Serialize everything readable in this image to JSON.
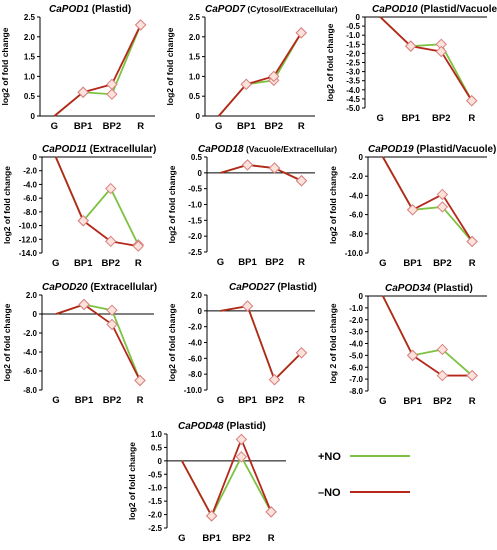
{
  "legend": [
    {
      "name": "+NO",
      "color": "#7dc242"
    },
    {
      "name": "–NO",
      "color": "#b5271b"
    }
  ],
  "style": {
    "plus_no_color": "#7dc242",
    "minus_no_color": "#b5271b",
    "marker_stroke": "#d98080",
    "marker_fill": "#fbe3dc"
  },
  "chart_data": [
    {
      "type": "line",
      "title_gene": "CaPOD1",
      "title_loc": " (Plastid)",
      "ylabel": "log2 of fold change",
      "categories": [
        "G",
        "BP1",
        "BP2",
        "R"
      ],
      "ylim": [
        0,
        2.5
      ],
      "yticks": [
        "0",
        "0.5",
        "1.0",
        "1.5",
        "2.0",
        "2.5"
      ],
      "tickvals": [
        0,
        0.5,
        1.0,
        1.5,
        2.0,
        2.5
      ],
      "series": [
        {
          "name": "+NO",
          "values": [
            0,
            0.6,
            0.55,
            2.3
          ]
        },
        {
          "name": "–NO",
          "values": [
            0,
            0.6,
            0.8,
            2.3
          ]
        }
      ]
    },
    {
      "type": "line",
      "title_gene": "CaPOD7",
      "title_loc": " (Cytosol/Extracellular)",
      "ylabel": "log2 of fold change",
      "categories": [
        "G",
        "BP1",
        "BP2",
        "R"
      ],
      "ylim": [
        0,
        2.5
      ],
      "yticks": [
        "0",
        "0.5",
        "1.0",
        "1.5",
        "2.0",
        "2.5"
      ],
      "tickvals": [
        0,
        0.5,
        1.0,
        1.5,
        2.0,
        2.5
      ],
      "series": [
        {
          "name": "+NO",
          "values": [
            0,
            0.8,
            0.9,
            2.1
          ]
        },
        {
          "name": "–NO",
          "values": [
            0,
            0.8,
            1.0,
            2.1
          ]
        }
      ]
    },
    {
      "type": "line",
      "title_gene": "CaPOD10",
      "title_loc": " (Plastid/Vacuole)",
      "ylabel": "log2 of fold change",
      "categories": [
        "G",
        "BP1",
        "BP2",
        "R"
      ],
      "ylim": [
        -5.0,
        0
      ],
      "yticks": [
        "0",
        "-0.5",
        "-1.0",
        "-1.5",
        "-2.0",
        "-2.5",
        "-3.0",
        "-3.5",
        "-4.0",
        "-4.5",
        "-5.0"
      ],
      "tickvals": [
        0,
        -0.5,
        -1.0,
        -1.5,
        -2.0,
        -2.5,
        -3.0,
        -3.5,
        -4.0,
        -4.5,
        -5.0
      ],
      "series": [
        {
          "name": "+NO",
          "values": [
            0,
            -1.6,
            -1.5,
            -4.6
          ]
        },
        {
          "name": "–NO",
          "values": [
            0,
            -1.6,
            -1.9,
            -4.6
          ]
        }
      ]
    },
    {
      "type": "line",
      "title_gene": "CaPOD11",
      "title_loc": " (Extracellular)",
      "ylabel": "log2 of fold change",
      "categories": [
        "G",
        "BP1",
        "BP2",
        "R"
      ],
      "ylim": [
        -14.0,
        0
      ],
      "yticks": [
        "0",
        "-2.0",
        "-4.0",
        "-6.0",
        "-8.0",
        "-10.0",
        "-12.0",
        "-14.0"
      ],
      "tickvals": [
        0,
        -2,
        -4,
        -6,
        -8,
        -10,
        -12,
        -14
      ],
      "series": [
        {
          "name": "+NO",
          "values": [
            0,
            -9.3,
            -4.6,
            -12.8
          ]
        },
        {
          "name": "–NO",
          "values": [
            0,
            -9.3,
            -12.3,
            -13.0
          ]
        }
      ]
    },
    {
      "type": "line",
      "title_gene": "CaPOD18",
      "title_loc": " (Vacuole/Extracellular)",
      "ylabel": "log2 of fold change",
      "categories": [
        "G",
        "BP1",
        "BP2",
        "R"
      ],
      "ylim": [
        -2.5,
        0.5
      ],
      "yticks": [
        "0.5",
        "0",
        "-0.5",
        "-1.0",
        "-1.5",
        "-2.0",
        "-2.5"
      ],
      "tickvals": [
        0.5,
        0,
        -0.5,
        -1.0,
        -1.5,
        -2.0,
        -2.5
      ],
      "series": [
        {
          "name": "+NO",
          "values": [
            0,
            0.25,
            0.15,
            -0.25
          ]
        },
        {
          "name": "–NO",
          "values": [
            0,
            0.25,
            0.15,
            -0.25
          ]
        }
      ]
    },
    {
      "type": "line",
      "title_gene": "CaPOD19",
      "title_loc": " (Plastid/Vacuole)",
      "ylabel": "log2 of fold change",
      "categories": [
        "G",
        "BP1",
        "BP2",
        "R"
      ],
      "ylim": [
        -10.0,
        0
      ],
      "yticks": [
        "0",
        "-2.0",
        "-4.0",
        "-6.0",
        "-8.0",
        "-10.0"
      ],
      "tickvals": [
        0,
        -2,
        -4,
        -6,
        -8,
        -10
      ],
      "series": [
        {
          "name": "+NO",
          "values": [
            0,
            -5.5,
            -5.2,
            -8.8
          ]
        },
        {
          "name": "–NO",
          "values": [
            0,
            -5.5,
            -3.9,
            -8.8
          ]
        }
      ]
    },
    {
      "type": "line",
      "title_gene": "CaPOD20",
      "title_loc": " (Extracellular)",
      "ylabel": "log2 of fold change",
      "categories": [
        "G",
        "BP1",
        "BP2",
        "R"
      ],
      "ylim": [
        -8.0,
        2.0
      ],
      "yticks": [
        "2.0",
        "0",
        "-2.0",
        "-4.0",
        "-6.0",
        "-8.0"
      ],
      "tickvals": [
        2,
        0,
        -2,
        -4,
        -6,
        -8
      ],
      "series": [
        {
          "name": "+NO",
          "values": [
            0,
            1.0,
            0.4,
            -7.0
          ]
        },
        {
          "name": "–NO",
          "values": [
            0,
            1.0,
            -1.1,
            -7.0
          ]
        }
      ]
    },
    {
      "type": "line",
      "title_gene": "CaPOD27",
      "title_loc": " (Plastid)",
      "ylabel": "log2 of fold change",
      "categories": [
        "G",
        "BP1",
        "BP2",
        "R"
      ],
      "ylim": [
        -10.0,
        2.0
      ],
      "yticks": [
        "2.0",
        "0",
        "-2.0",
        "-4.0",
        "-6.0",
        "-8.0",
        "-10.0"
      ],
      "tickvals": [
        2,
        0,
        -2,
        -4,
        -6,
        -8,
        -10
      ],
      "series": [
        {
          "name": "+NO",
          "values": [
            0,
            0.6,
            -8.7,
            -5.3
          ]
        },
        {
          "name": "–NO",
          "values": [
            0,
            0.6,
            -8.7,
            -5.3
          ]
        }
      ]
    },
    {
      "type": "line",
      "title_gene": "CaPOD34",
      "title_loc": " (Plastid)",
      "ylabel": "log 2 of fold change",
      "categories": [
        "G",
        "BP1",
        "BP2",
        "R"
      ],
      "ylim": [
        -8.0,
        0
      ],
      "yticks": [
        "0",
        "-1.0",
        "-2.0",
        "-3.0",
        "-4.0",
        "-5.0",
        "-6.0",
        "-7.0",
        "-8.0"
      ],
      "tickvals": [
        0,
        -1,
        -2,
        -3,
        -4,
        -5,
        -6,
        -7,
        -8
      ],
      "series": [
        {
          "name": "+NO",
          "values": [
            0,
            -5.0,
            -4.5,
            -6.7
          ]
        },
        {
          "name": "–NO",
          "values": [
            0,
            -5.0,
            -6.7,
            -6.7
          ]
        }
      ]
    },
    {
      "type": "line",
      "title_gene": "CaPOD48",
      "title_loc": " (Plastid)",
      "ylabel": "log2 of fold change",
      "categories": [
        "G",
        "BP1",
        "BP2",
        "R"
      ],
      "ylim": [
        -2.5,
        1.0
      ],
      "yticks": [
        "1.0",
        "0.5",
        "0",
        "-0.5",
        "-1.0",
        "-1.5",
        "-2.0",
        "-2.5"
      ],
      "tickvals": [
        1.0,
        0.5,
        0,
        -0.5,
        -1.0,
        -1.5,
        -2.0,
        -2.5
      ],
      "series": [
        {
          "name": "+NO",
          "values": [
            0,
            -2.05,
            0.15,
            -1.9
          ]
        },
        {
          "name": "–NO",
          "values": [
            0,
            -2.05,
            0.8,
            -1.9
          ]
        }
      ]
    }
  ]
}
